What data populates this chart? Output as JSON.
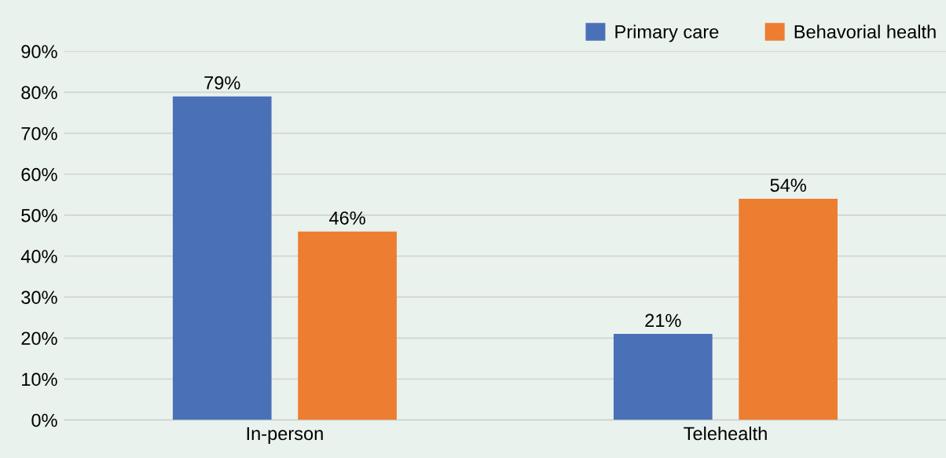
{
  "chart_data": {
    "type": "bar",
    "categories": [
      "In-person",
      "Telehealth"
    ],
    "series": [
      {
        "name": "Primary care",
        "color": "#4a70b8",
        "values": [
          79,
          21
        ],
        "value_labels": [
          "79%",
          "21%"
        ]
      },
      {
        "name": "Behavorial health",
        "color": "#ed7d31",
        "values": [
          46,
          54
        ],
        "value_labels": [
          "46%",
          "54%"
        ]
      }
    ],
    "ylim": [
      0,
      90
    ],
    "yticks": [
      {
        "value": 0,
        "label": "0%"
      },
      {
        "value": 10,
        "label": "10%"
      },
      {
        "value": 20,
        "label": "20%"
      },
      {
        "value": 30,
        "label": "30%"
      },
      {
        "value": 40,
        "label": "40%"
      },
      {
        "value": 50,
        "label": "50%"
      },
      {
        "value": 60,
        "label": "60%"
      },
      {
        "value": 70,
        "label": "70%"
      },
      {
        "value": 80,
        "label": "80%"
      },
      {
        "value": 90,
        "label": "90%"
      }
    ],
    "grid": "y",
    "legend": "top right"
  }
}
